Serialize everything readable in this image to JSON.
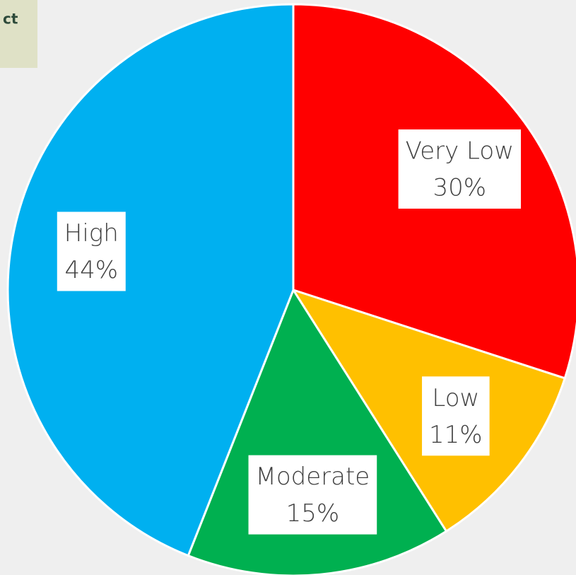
{
  "header_fragment": "ct",
  "chart_data": {
    "type": "pie",
    "categories": [
      "Very Low",
      "Low",
      "Moderate",
      "High"
    ],
    "values": [
      30,
      11,
      15,
      44
    ],
    "value_labels": [
      "30%",
      "11%",
      "15%",
      "44%"
    ],
    "colors": [
      "#ff0000",
      "#ffc000",
      "#00b050",
      "#00b0f0"
    ]
  }
}
